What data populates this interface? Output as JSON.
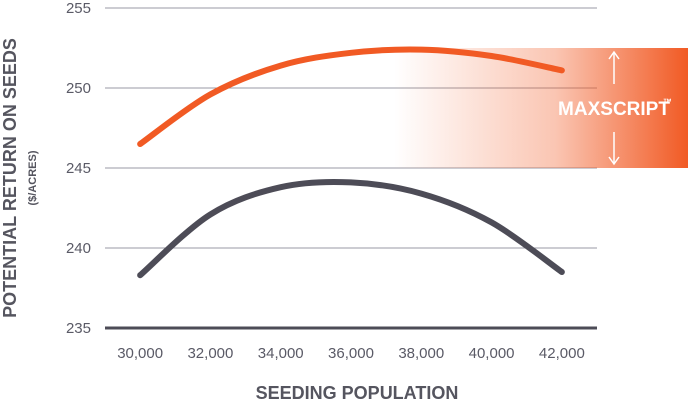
{
  "chart_data": {
    "type": "line",
    "xlabel": "SEEDING POPULATION",
    "ylabel": "POTENTIAL RETURN ON SEEDS",
    "ylabel_unit": "($/ACRES)",
    "xlim": [
      29000,
      43000
    ],
    "ylim": [
      235,
      255
    ],
    "x_ticks": [
      "30,000",
      "32,000",
      "34,000",
      "36,000",
      "38,000",
      "40,000",
      "42,000"
    ],
    "y_ticks": [
      "255",
      "250",
      "245",
      "240",
      "235"
    ],
    "grid": true,
    "series": [
      {
        "color": "#f15a24",
        "x": [
          30000,
          32000,
          34000,
          36000,
          38000,
          40000,
          42000
        ],
        "y": [
          246.5,
          249.6,
          251.4,
          252.2,
          252.4,
          252.0,
          251.1
        ]
      },
      {
        "color": "#4d4c57",
        "x": [
          30000,
          32000,
          34000,
          36000,
          38000,
          40000,
          42000
        ],
        "y": [
          238.3,
          242.1,
          243.8,
          244.1,
          243.4,
          241.6,
          238.5
        ]
      }
    ],
    "annotation": {
      "label": "MAXSCRIPT",
      "trademark": "™",
      "color": "#f15a24",
      "y_range": [
        245,
        252.5
      ]
    }
  }
}
